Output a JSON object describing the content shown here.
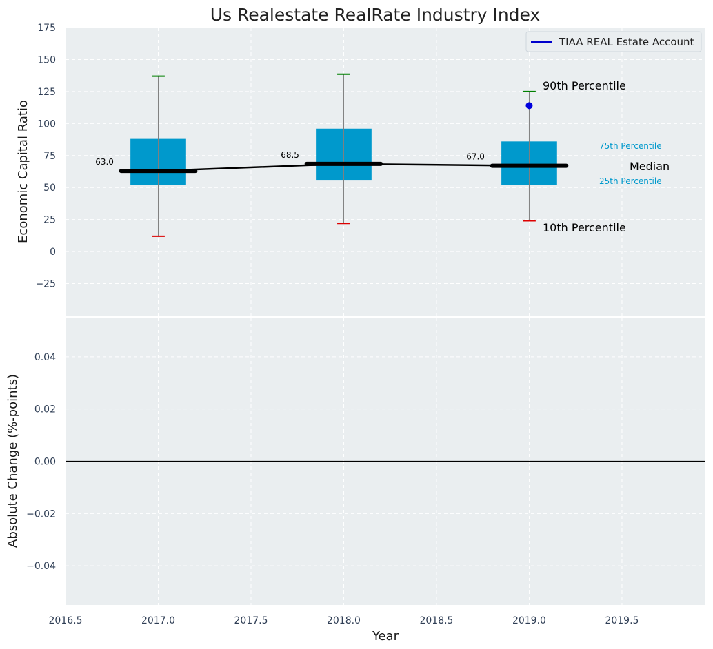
{
  "chart_data": [
    {
      "type": "box",
      "title": "Us Realestate RealRate Industry Index",
      "ylabel": "Economic Capital Ratio",
      "ylim": [
        -50,
        175
      ],
      "xlim": [
        2016.5,
        2019.95
      ],
      "yticks": [
        -25,
        0,
        25,
        50,
        75,
        100,
        125,
        150,
        175
      ],
      "ytick_labels": [
        "−25",
        "0",
        "25",
        "50",
        "75",
        "100",
        "125",
        "150",
        "175"
      ],
      "grid": true,
      "legend_position": "top-right",
      "legend": [
        {
          "label": "TIAA REAL Estate Account",
          "color": "#0000cc"
        }
      ],
      "boxes": [
        {
          "x": 2017.0,
          "p10": 12,
          "p25": 52,
          "median": 63.0,
          "p75": 88,
          "p90": 137,
          "median_label": "63.0"
        },
        {
          "x": 2018.0,
          "p10": 22,
          "p25": 56,
          "median": 68.5,
          "p75": 96,
          "p90": 138.5,
          "median_label": "68.5"
        },
        {
          "x": 2019.0,
          "p10": 24,
          "p25": 52,
          "median": 67.0,
          "p75": 86,
          "p90": 125,
          "median_label": "67.0"
        }
      ],
      "series": [
        {
          "name": "TIAA REAL Estate Account",
          "x": [
            2019.0
          ],
          "y": [
            114
          ]
        }
      ],
      "annotations": {
        "p90": "90th Percentile",
        "p75": "75th Percentile",
        "median": "Median",
        "p25": "25th Percentile",
        "p10": "10th Percentile"
      },
      "colors": {
        "box": "#0099cc",
        "median": "#000000",
        "p90_cap": "#008000",
        "p10_cap": "#dd0000",
        "whisker": "#808080",
        "marker": "#0000dd"
      }
    },
    {
      "type": "line",
      "ylabel": "Absolute Change (%-points)",
      "xlabel": "Year",
      "ylim": [
        -0.055,
        0.055
      ],
      "xlim": [
        2016.5,
        2019.95
      ],
      "yticks": [
        -0.04,
        -0.02,
        0.0,
        0.02,
        0.04
      ],
      "ytick_labels": [
        "−0.04",
        "−0.02",
        "0.00",
        "0.02",
        "0.04"
      ],
      "xticks": [
        2016.5,
        2017.0,
        2017.5,
        2018.0,
        2018.5,
        2019.0,
        2019.5
      ],
      "xtick_labels": [
        "2016.5",
        "2017.0",
        "2017.5",
        "2018.0",
        "2018.5",
        "2019.0",
        "2019.5"
      ],
      "grid": true,
      "hline": 0.0,
      "series": []
    }
  ]
}
